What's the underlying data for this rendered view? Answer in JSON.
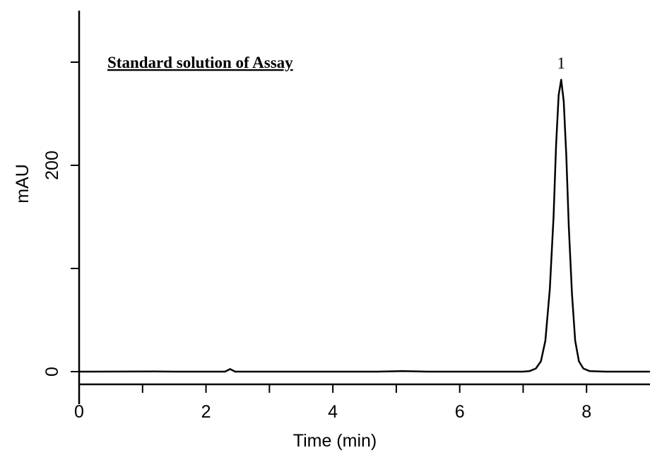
{
  "chart_data": {
    "type": "line",
    "title": "Standard solution of Assay",
    "xlabel": "Time (min)",
    "ylabel": "mAU",
    "xlim": [
      0,
      9
    ],
    "ylim": [
      -12,
      345
    ],
    "x_ticks": [
      0,
      2,
      4,
      6,
      8
    ],
    "x_minor_ticks": [
      1,
      3,
      5,
      7
    ],
    "y_ticks": [
      0,
      200
    ],
    "y_minor_ticks": [
      100,
      300
    ],
    "grid": false,
    "series": [
      {
        "points": [
          [
            0.0,
            0.0
          ],
          [
            1.2,
            0.2
          ],
          [
            1.5,
            0.0
          ],
          [
            2.3,
            0.0
          ],
          [
            2.38,
            2.5
          ],
          [
            2.46,
            0.0
          ],
          [
            4.7,
            0.0
          ],
          [
            5.1,
            0.5
          ],
          [
            5.5,
            0.0
          ],
          [
            7.0,
            0.0
          ],
          [
            7.1,
            0.5
          ],
          [
            7.2,
            3.0
          ],
          [
            7.28,
            10.0
          ],
          [
            7.35,
            30.0
          ],
          [
            7.42,
            80.0
          ],
          [
            7.48,
            150.0
          ],
          [
            7.52,
            220.0
          ],
          [
            7.56,
            268.0
          ],
          [
            7.6,
            283.0
          ],
          [
            7.64,
            262.0
          ],
          [
            7.68,
            210.0
          ],
          [
            7.72,
            140.0
          ],
          [
            7.77,
            75.0
          ],
          [
            7.82,
            30.0
          ],
          [
            7.88,
            10.0
          ],
          [
            7.95,
            3.0
          ],
          [
            8.05,
            0.5
          ],
          [
            8.3,
            0.0
          ],
          [
            9.0,
            0.0
          ]
        ]
      }
    ],
    "peak_labels": [
      {
        "text": "1",
        "x": 7.6,
        "y": 283
      }
    ],
    "line_color": "#000000"
  }
}
